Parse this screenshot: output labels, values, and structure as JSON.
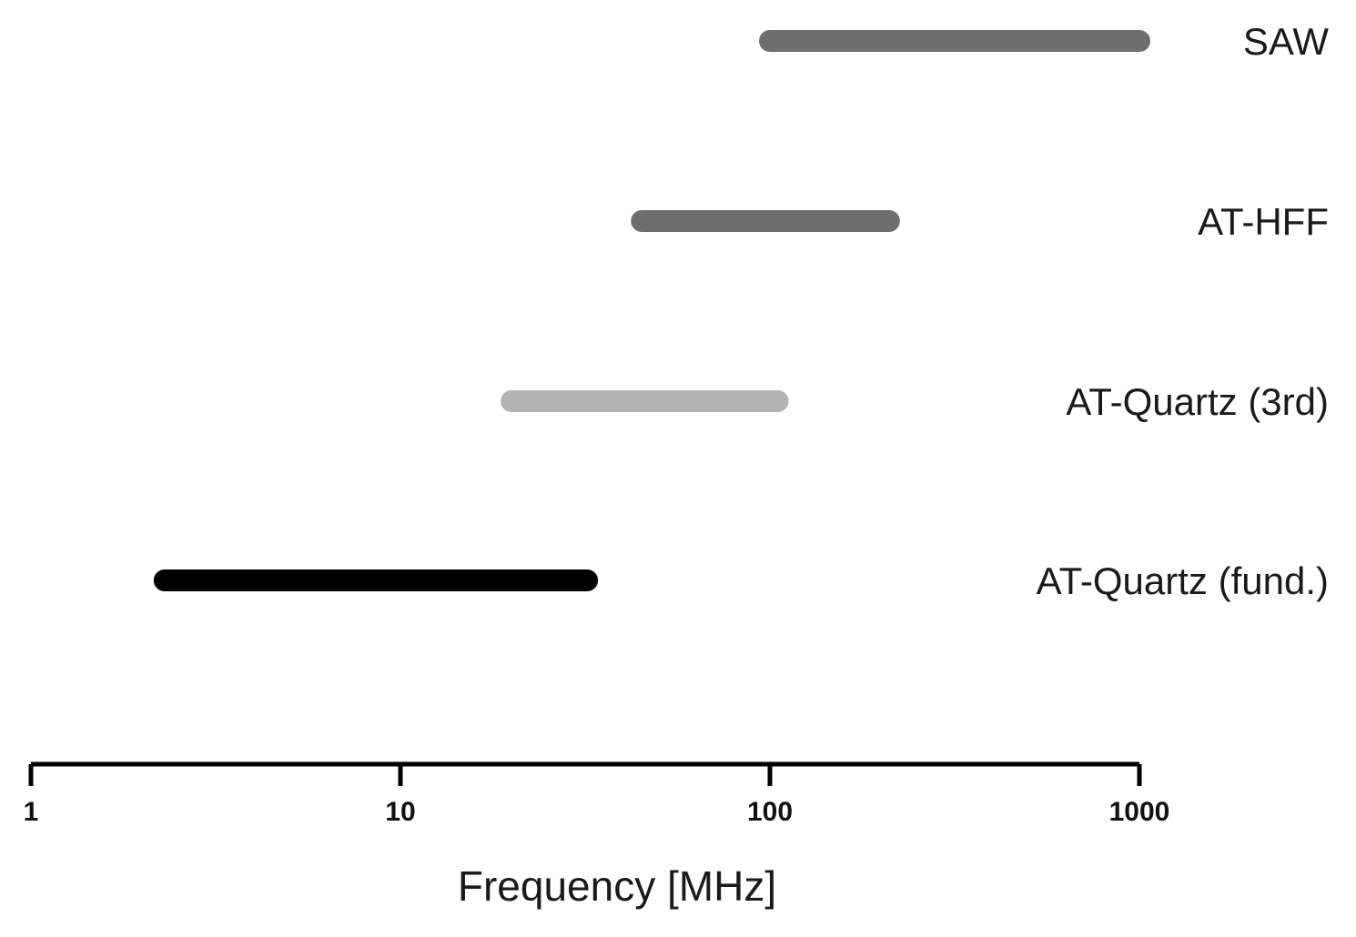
{
  "chart_data": {
    "type": "bar",
    "orientation": "horizontal-range",
    "xscale": "log",
    "xlim": [
      1,
      1000
    ],
    "xlabel": "Frequency [MHz]",
    "xticks": [
      {
        "value": 1,
        "label": "1"
      },
      {
        "value": 10,
        "label": "10"
      },
      {
        "value": 100,
        "label": "100"
      },
      {
        "value": 1000,
        "label": "1000"
      }
    ],
    "grid": false,
    "ranges": [
      {
        "label": "SAW",
        "start": 100,
        "end": 1000,
        "color": "#6e6e6e"
      },
      {
        "label": "AT-HFF",
        "start": 45,
        "end": 210,
        "color": "#6e6e6e"
      },
      {
        "label": "AT-Quartz (3rd)",
        "start": 20,
        "end": 105,
        "color": "#b3b3b3"
      },
      {
        "label": "AT-Quartz (fund.)",
        "start": 2.3,
        "end": 32,
        "color": "#000000"
      }
    ]
  }
}
